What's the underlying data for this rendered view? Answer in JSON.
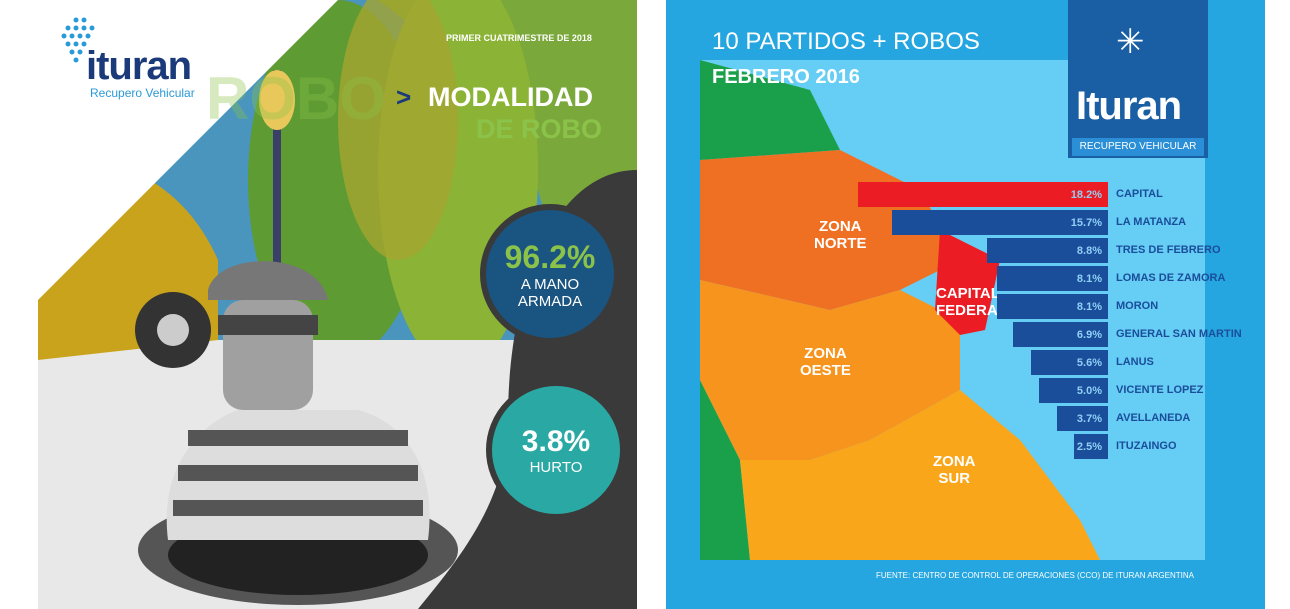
{
  "left": {
    "brand": "ituran",
    "brand_sub": "Recupero Vehicular",
    "period": "PRIMER CUATRIMESTRE DE 2018",
    "bg_word": "ROBO",
    "title_line1": "MODALIDAD",
    "title_line2": "DE ROBO",
    "stat1": {
      "value": "96.2%",
      "label1": "A MANO",
      "label2": "ARMADA"
    },
    "stat2": {
      "value": "3.8%",
      "label": "HURTO"
    }
  },
  "right": {
    "title": "10 PARTIDOS + ROBOS",
    "subtitle": "FEBRERO 2016",
    "brand": "Ituran",
    "brand_sub": "RECUPERO VEHICULAR",
    "zones": {
      "norte": [
        "ZONA",
        "NORTE"
      ],
      "oeste": [
        "ZONA",
        "OESTE"
      ],
      "sur": [
        "ZONA",
        "SUR"
      ],
      "capital": [
        "CAPITAL",
        "FEDERAL"
      ]
    },
    "source": "FUENTE: CENTRO DE CONTROL DE OPERACIONES (CCO) DE ITURAN ARGENTINA"
  },
  "chart_data": {
    "type": "bar",
    "orientation": "horizontal",
    "title": "10 PARTIDOS + ROBOS",
    "subtitle": "FEBRERO 2016",
    "categories": [
      "CAPITAL",
      "LA MATANZA",
      "TRES DE FEBRERO",
      "LOMAS DE ZAMORA",
      "MORON",
      "GENERAL SAN MARTIN",
      "LANUS",
      "VICENTE LOPEZ",
      "AVELLANEDA",
      "ITUZAINGO"
    ],
    "values": [
      18.2,
      15.7,
      8.8,
      8.1,
      8.1,
      6.9,
      5.6,
      5.0,
      3.7,
      2.5
    ],
    "labels": [
      "18.2%",
      "15.7%",
      "8.8%",
      "8.1%",
      "8.1%",
      "6.9%",
      "5.6%",
      "5.0%",
      "3.7%",
      "2.5%"
    ],
    "unit": "%",
    "colors": [
      "#ec1c24",
      "#1a4d9a"
    ]
  }
}
